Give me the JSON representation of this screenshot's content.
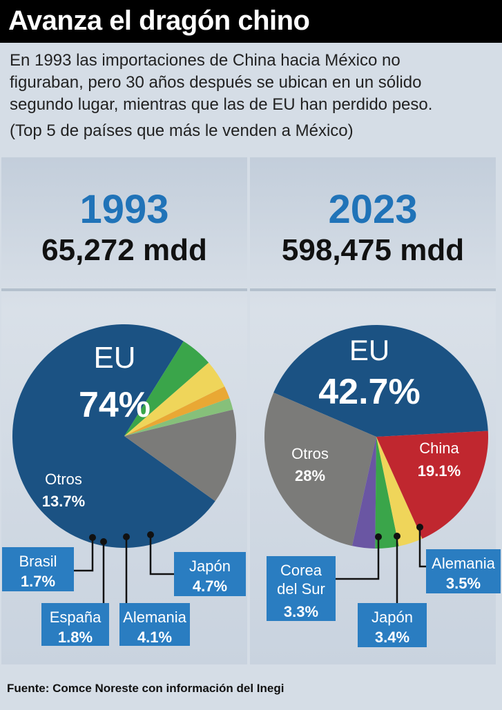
{
  "title": "Avanza el dragón chino",
  "intro": {
    "lines": [
      "En 1993 las importaciones de China hacia México no",
      "figuraban, pero 30 años después se ubican en un sólido",
      "segundo lugar, mientras que las de EU han perdido peso."
    ],
    "subtitle": "(Top 5 de países que más le venden a México)"
  },
  "footer": "Fuente: Comce Noreste con información del Inegi",
  "colors": {
    "accent_blue": "#2073b8",
    "eu": "#1b5283",
    "otros": "#7b7b79",
    "china": "#c0272f",
    "green": "#3aa54a",
    "yellow": "#efd55a",
    "orange": "#e9a834",
    "lightgreen": "#86c07a",
    "purple": "#6a56a3",
    "label_bg": "#2a7dc1"
  },
  "chart_data": [
    {
      "type": "pie",
      "title": "1993",
      "subtitle": "65,272 mdd",
      "slices": [
        {
          "name": "EU",
          "value": 74,
          "label": "74%"
        },
        {
          "name": "Otros",
          "value": 13.7,
          "label": "13.7%"
        },
        {
          "name": "Brasil",
          "value": 1.7,
          "label": "1.7%"
        },
        {
          "name": "España",
          "value": 1.8,
          "label": "1.8%"
        },
        {
          "name": "Alemania",
          "value": 4.1,
          "label": "4.1%"
        },
        {
          "name": "Japón",
          "value": 4.7,
          "label": "4.7%"
        }
      ]
    },
    {
      "type": "pie",
      "title": "2023",
      "subtitle": "598,475 mdd",
      "slices": [
        {
          "name": "EU",
          "value": 42.7,
          "label": "42.7%"
        },
        {
          "name": "China",
          "value": 19.1,
          "label": "19.1%"
        },
        {
          "name": "Alemania",
          "value": 3.5,
          "label": "3.5%"
        },
        {
          "name": "Japón",
          "value": 3.4,
          "label": "3.4%"
        },
        {
          "name": "Corea del Sur",
          "value": 3.3,
          "label": "3.3%"
        },
        {
          "name": "Otros",
          "value": 28,
          "label": "28%"
        }
      ]
    }
  ]
}
